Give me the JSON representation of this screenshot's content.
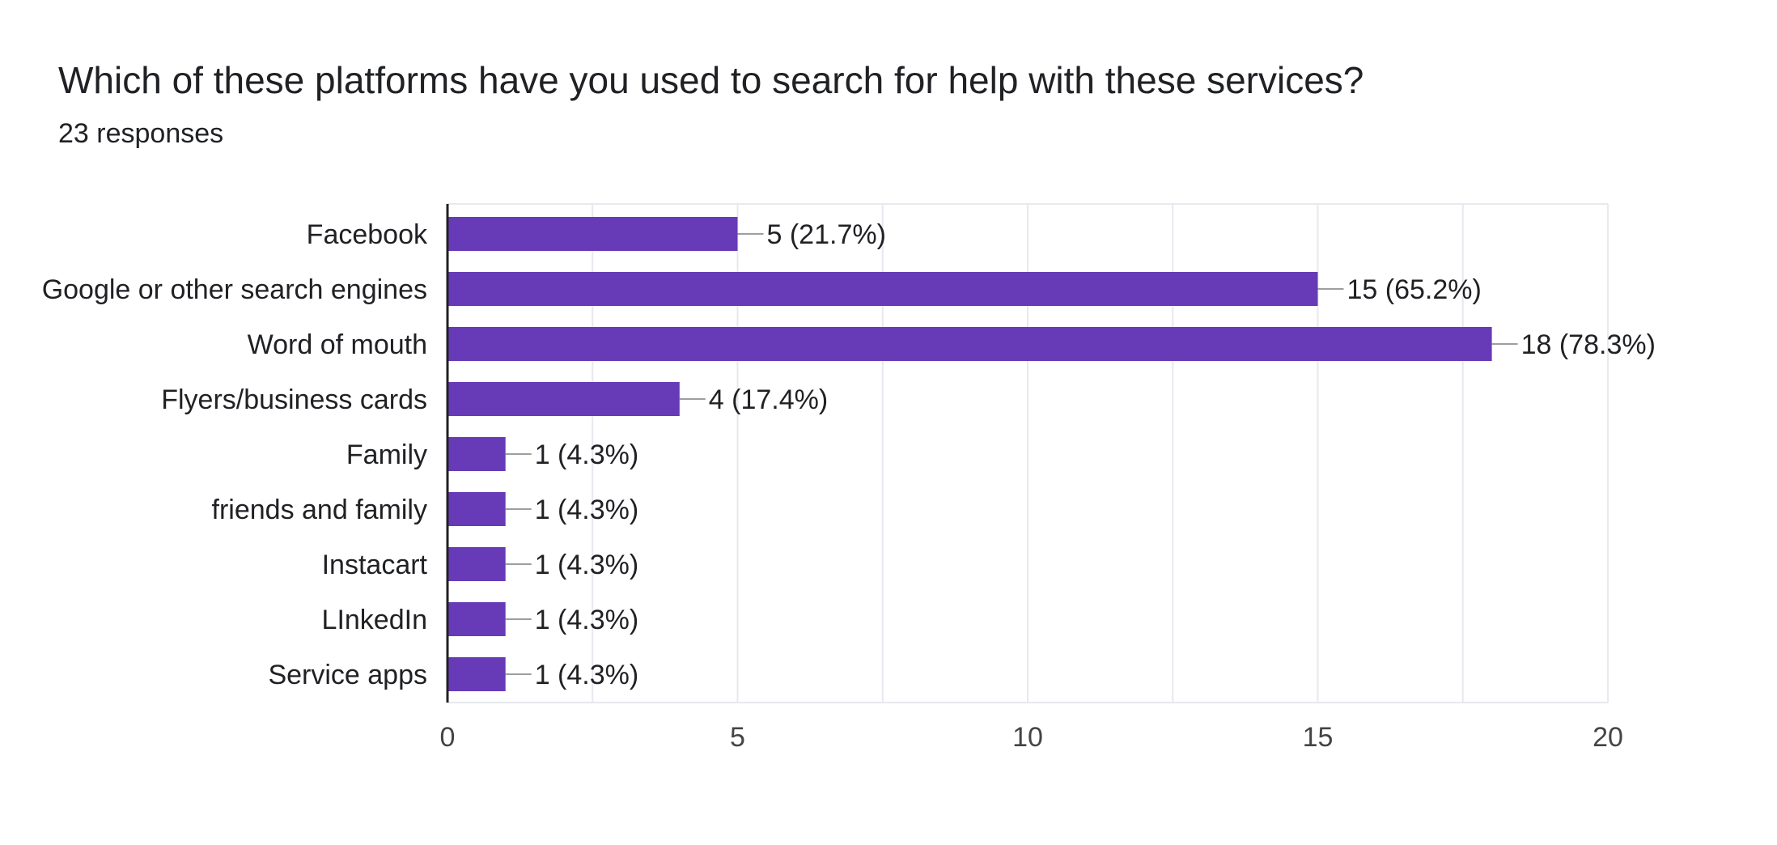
{
  "title": "Which of these platforms have you used to search for help with these services?",
  "subtitle": "23 responses",
  "colors": {
    "bar": "#673AB7",
    "grid": "#e8e8ee",
    "axis": "#202124",
    "leader": "#9e9e9e",
    "text": "#202124",
    "tick_text": "#444444"
  },
  "chart_data": {
    "type": "bar",
    "orientation": "horizontal",
    "categories": [
      "Facebook",
      "Google or other search engines",
      "Word of mouth",
      "Flyers/business cards",
      "Family",
      "friends and family",
      "Instacart",
      "LInkedIn",
      "Service apps"
    ],
    "values": [
      5,
      15,
      18,
      4,
      1,
      1,
      1,
      1,
      1
    ],
    "data_labels": [
      "5 (21.7%)",
      "15 (65.2%)",
      "18 (78.3%)",
      "4 (17.4%)",
      "1 (4.3%)",
      "1 (4.3%)",
      "1 (4.3%)",
      "1 (4.3%)",
      "1 (4.3%)"
    ],
    "xlim": [
      0,
      20
    ],
    "xticks": [
      0,
      5,
      10,
      15,
      20
    ],
    "grid": true,
    "legend": "none"
  }
}
